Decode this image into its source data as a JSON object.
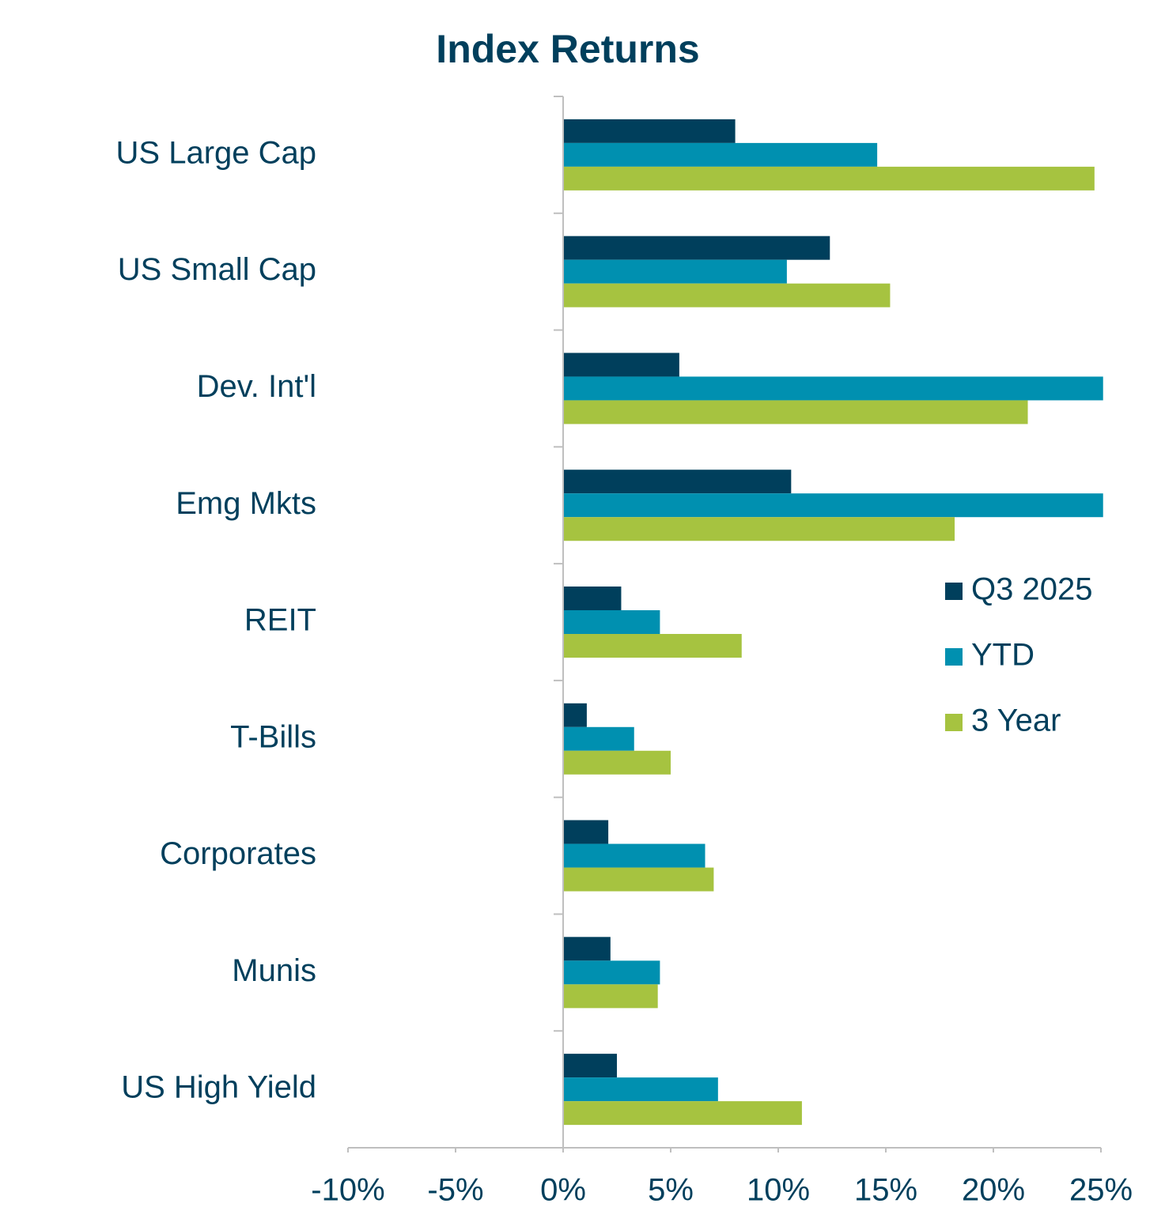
{
  "chart_data": {
    "type": "hbar",
    "title": "Index Returns",
    "categories": [
      "US Large Cap",
      "US Small Cap",
      "Dev. Int'l",
      "Emg Mkts",
      "REIT",
      "T-Bills",
      "Corporates",
      "Munis",
      "US High Yield"
    ],
    "series": [
      {
        "name": "Q3 2025",
        "color": "#003f5c",
        "values": [
          8.0,
          12.4,
          5.4,
          10.6,
          2.7,
          1.1,
          2.1,
          2.2,
          2.5
        ]
      },
      {
        "name": "YTD",
        "color": "#0090b0",
        "values": [
          14.6,
          10.4,
          25.1,
          25.1,
          4.5,
          3.3,
          6.6,
          4.5,
          7.2
        ]
      },
      {
        "name": "3 Year",
        "color": "#a6c340",
        "values": [
          24.7,
          15.2,
          21.6,
          18.2,
          8.3,
          5.0,
          7.0,
          4.4,
          11.1
        ]
      }
    ],
    "xlim": [
      -10,
      25
    ],
    "xticks": [
      {
        "value": -10,
        "label": "-10%"
      },
      {
        "value": -5,
        "label": "-5%"
      },
      {
        "value": 0,
        "label": "0%"
      },
      {
        "value": 5,
        "label": "5%"
      },
      {
        "value": 10,
        "label": "10%"
      },
      {
        "value": 15,
        "label": "15%"
      },
      {
        "value": 20,
        "label": "20%"
      },
      {
        "value": 25,
        "label": "25%"
      }
    ],
    "grid": false,
    "legend": "right"
  }
}
